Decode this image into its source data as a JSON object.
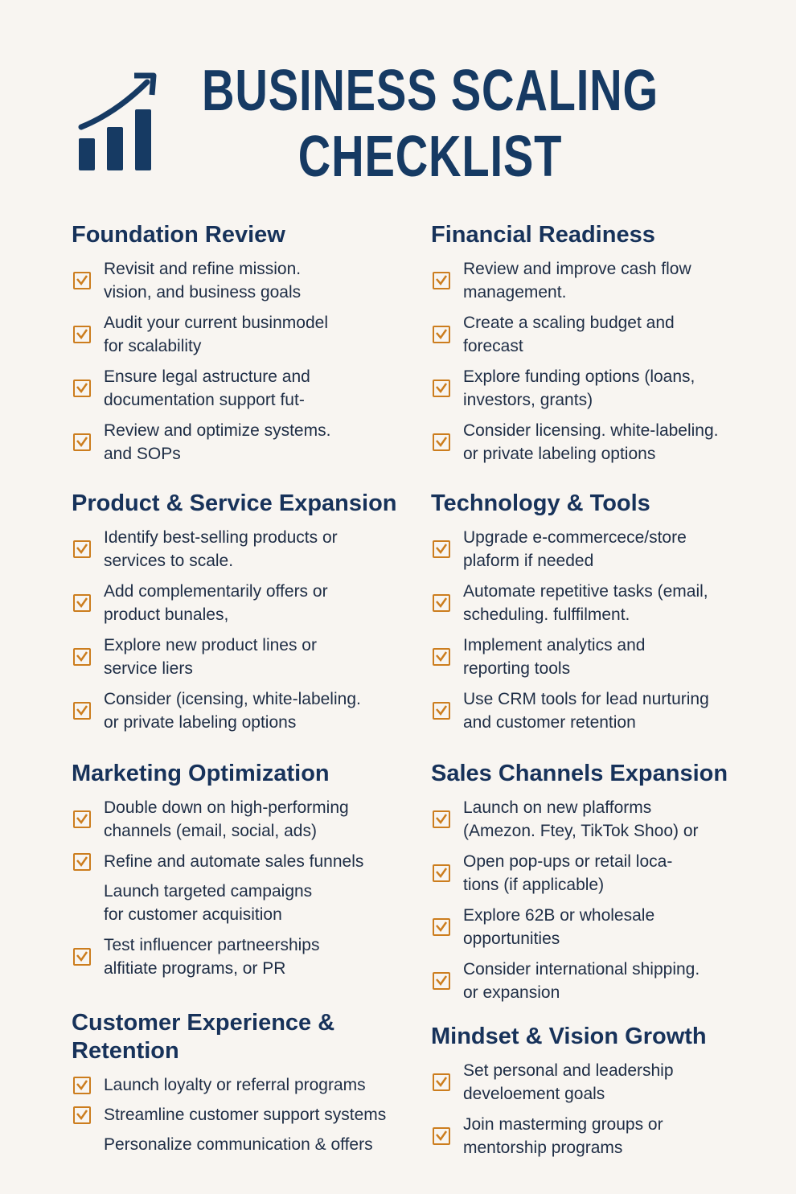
{
  "header": {
    "title_line1": "BUSINESS SCALING",
    "title_line2": "CHECKLIST",
    "logo_icon": "growth-bar-chart-arrow-icon"
  },
  "colors": {
    "navy": "#163a63",
    "checkbox": "#cc7d1e",
    "background": "#f8f5f1"
  },
  "sections": [
    {
      "id": "foundation-review",
      "column": "left",
      "title": "Foundation Review",
      "items": [
        {
          "text": "Revisit and refine mission.\nvision, and business goals",
          "checked": true
        },
        {
          "text": "Audit your current businmodel\nfor scalability",
          "checked": true
        },
        {
          "text": "Ensure legal astructure and\ndocumentation support fut-",
          "checked": true
        },
        {
          "text": "Review and optimize systems.\nand SOPs",
          "checked": true
        }
      ]
    },
    {
      "id": "product-service-expansion",
      "column": "left",
      "title": "Product & Service Expansion",
      "items": [
        {
          "text": "Identify best-selling products or\nservices to scale.",
          "checked": true
        },
        {
          "text": "Add complementarily offers or\nproduct bunales,",
          "checked": true
        },
        {
          "text": "Explore new product lines or\nservice liers",
          "checked": true
        },
        {
          "text": "Consider (icensing, white-labeling.\nor private labeling options",
          "checked": true
        }
      ]
    },
    {
      "id": "marketing-optimization",
      "column": "left",
      "title": "Marketing Optimization",
      "items": [
        {
          "text": "Double down on high-performing\nchannels (email, social, ads)",
          "checked": true
        },
        {
          "text": "Refine and automate sales funnels",
          "checked": true
        },
        {
          "text": "Launch targeted campaigns\nfor customer acquisition",
          "checked": false
        },
        {
          "text": "Test influencer partneerships\nalfitiate programs, or PR",
          "checked": true
        }
      ]
    },
    {
      "id": "customer-experience-retention",
      "column": "left",
      "title": "Customer Experience &\nRetention",
      "items": [
        {
          "text": "Launch loyalty or referral programs",
          "checked": true
        },
        {
          "text": "Streamline customer support systems",
          "checked": true
        },
        {
          "text": "Personalize communication & offers",
          "checked": false
        }
      ]
    },
    {
      "id": "financial-readiness",
      "column": "right",
      "title": "Financial Readiness",
      "items": [
        {
          "text": "Review and improve cash flow\nmanagement.",
          "checked": true
        },
        {
          "text": "Create a scaling budget and\nforecast",
          "checked": true
        },
        {
          "text": "Explore funding options (loans,\ninvestors, grants)",
          "checked": true
        },
        {
          "text": "Consider licensing. white-labeling.\nor private labeling options",
          "checked": true
        }
      ]
    },
    {
      "id": "technology-tools",
      "column": "right",
      "title": "Technology & Tools",
      "items": [
        {
          "text": "Upgrade e-commercece/store\nplaform if needed",
          "checked": true
        },
        {
          "text": "Automate repetitive tasks (email,\nscheduling. fulffilment.",
          "checked": true
        },
        {
          "text": "Implement analytics and\nreporting tools",
          "checked": true
        },
        {
          "text": "Use CRM tools for lead nurturing\nand customer retention",
          "checked": true
        }
      ]
    },
    {
      "id": "sales-channels-expansion",
      "column": "right",
      "title": "Sales Channels Expansion",
      "items": [
        {
          "text": "Launch on new plafforms\n(Amezon. Ftey, TikTok Shoo) or",
          "checked": true
        },
        {
          "text": "Open pop-ups or retail loca-\ntions (if applicable)",
          "checked": true
        },
        {
          "text": "Explore 62B or wholesale\nopportunities",
          "checked": true
        },
        {
          "text": "Consider international shipping.\nor expansion",
          "checked": true
        }
      ]
    },
    {
      "id": "mindset-vision-growth",
      "column": "right",
      "title": "Mindset & Vision Growth",
      "items": [
        {
          "text": "Set personal and leadership\ndeveloement goals",
          "checked": true
        },
        {
          "text": "Join masterming groups or\nmentorship programs",
          "checked": true
        }
      ]
    }
  ]
}
